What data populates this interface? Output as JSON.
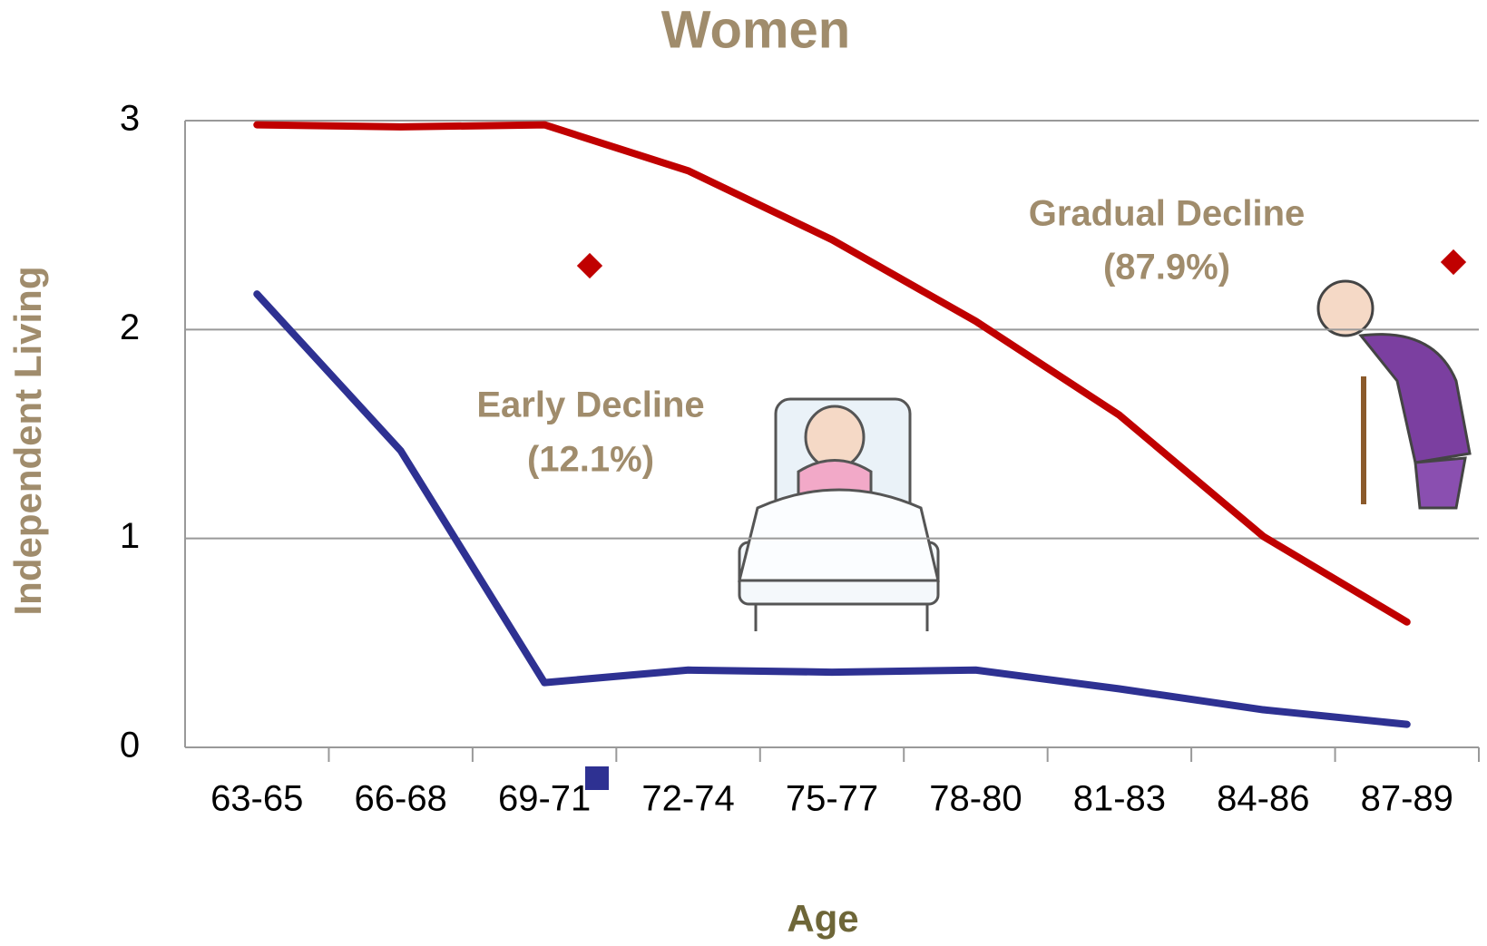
{
  "chart_data": {
    "type": "line",
    "title": "Women",
    "x_label": "Age",
    "y_label": "Independent Living",
    "categories": [
      "63-65",
      "66-68",
      "69-71",
      "72-74",
      "75-77",
      "78-80",
      "81-83",
      "84-86",
      "87-89"
    ],
    "series": [
      {
        "name": "Early Decline",
        "share": "(12.1%)",
        "color": "#2e3192",
        "values": [
          2.17,
          1.42,
          0.31,
          0.37,
          0.36,
          0.37,
          0.28,
          0.18,
          0.11
        ]
      },
      {
        "name": "Gradual Decline",
        "share": "(87.9%)",
        "color": "#c00000",
        "values": [
          2.98,
          2.97,
          2.98,
          2.76,
          2.43,
          2.04,
          1.59,
          1.01,
          0.6
        ]
      }
    ],
    "ylim": [
      0,
      3
    ],
    "yticks": [
      0,
      1,
      2,
      3
    ],
    "grid": true
  }
}
